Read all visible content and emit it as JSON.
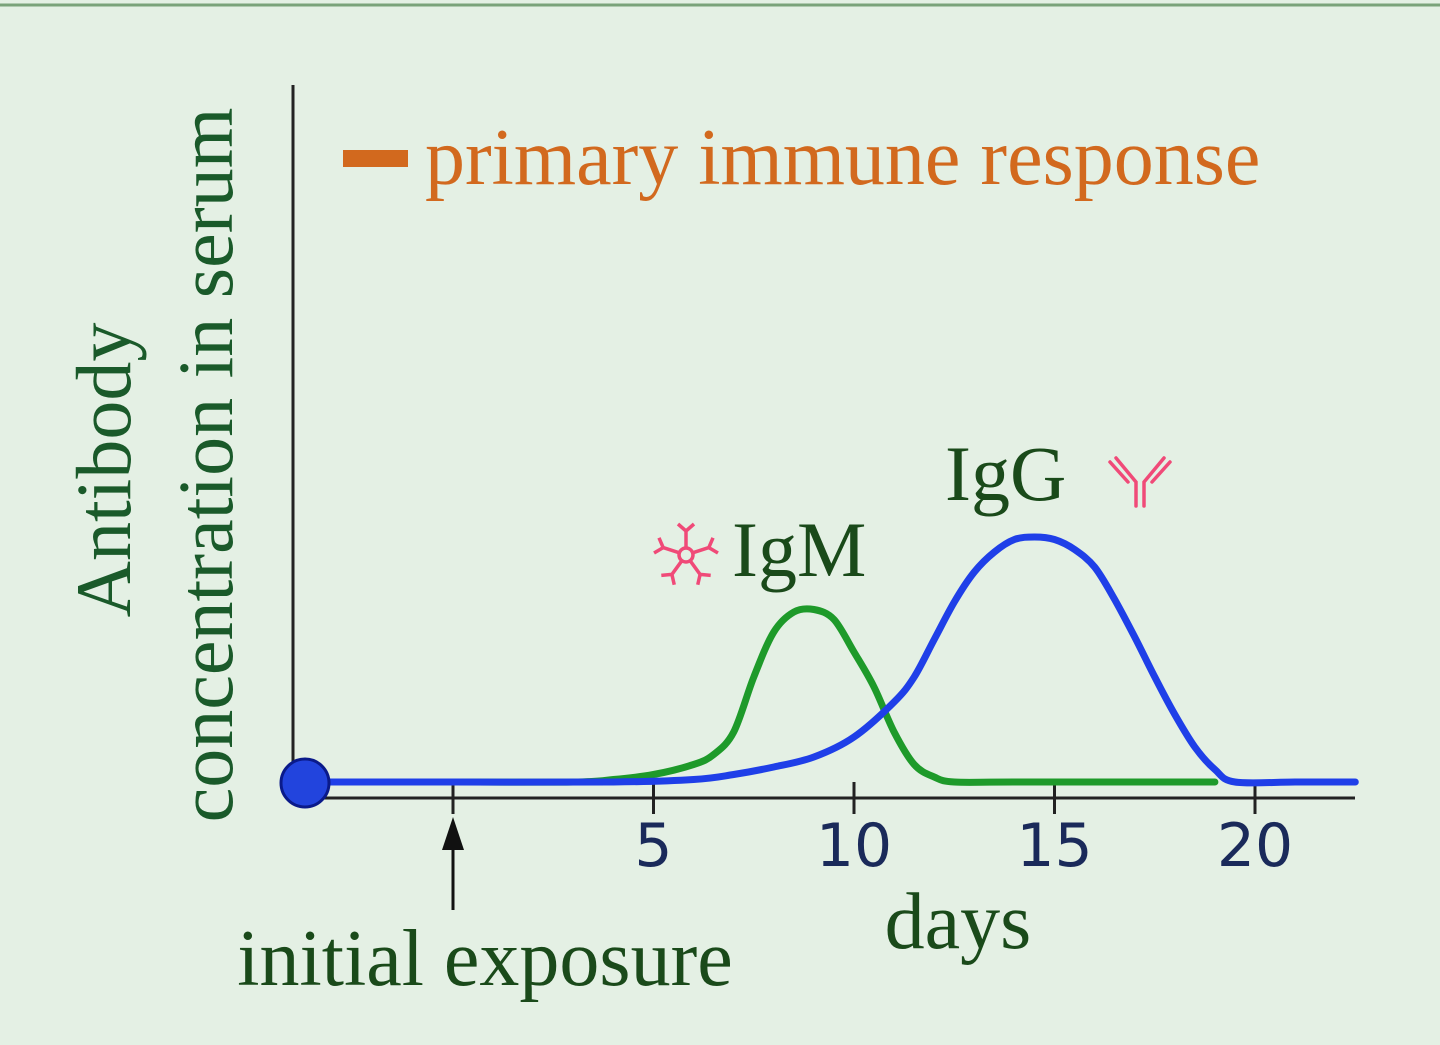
{
  "chart_data": {
    "type": "line",
    "legend": {
      "label": "primary immune response",
      "color": "#d2691e",
      "placement": "top"
    },
    "ylabel_lines": [
      "Antibody",
      "concentration in serum"
    ],
    "xlabel": "days",
    "x_ticks": [
      5,
      10,
      15,
      20
    ],
    "xlim": [
      -0.3,
      22.5
    ],
    "ylim": [
      0,
      1
    ],
    "annotation": {
      "label": "initial exposure",
      "x": 0
    },
    "series": [
      {
        "name": "IgM",
        "color": "#1e9a2a",
        "icon": "igm-pentamer-icon",
        "x": [
          0,
          3,
          4,
          5,
          6,
          6.5,
          7,
          7.5,
          8,
          8.5,
          9,
          9.5,
          10,
          10.5,
          11,
          11.5,
          12,
          12.5,
          14,
          18,
          19
        ],
        "y": [
          0,
          0,
          0.01,
          0.03,
          0.07,
          0.11,
          0.2,
          0.42,
          0.6,
          0.68,
          0.69,
          0.65,
          0.52,
          0.38,
          0.2,
          0.07,
          0.02,
          0,
          0,
          0,
          0
        ]
      },
      {
        "name": "IgG",
        "color": "#1f3fe8",
        "icon": "igg-antibody-icon",
        "x": [
          -3.7,
          0,
          4,
          6,
          7,
          8,
          9,
          10,
          11,
          11.5,
          12,
          12.5,
          13,
          13.5,
          14,
          14.5,
          15,
          15.5,
          16,
          16.5,
          17,
          17.5,
          18,
          18.5,
          19,
          19.5,
          21,
          22.5
        ],
        "y": [
          0,
          0,
          0,
          0.01,
          0.03,
          0.06,
          0.1,
          0.18,
          0.32,
          0.42,
          0.57,
          0.72,
          0.84,
          0.92,
          0.97,
          0.98,
          0.97,
          0.93,
          0.86,
          0.73,
          0.58,
          0.42,
          0.27,
          0.14,
          0.05,
          0,
          0,
          0
        ]
      }
    ]
  }
}
